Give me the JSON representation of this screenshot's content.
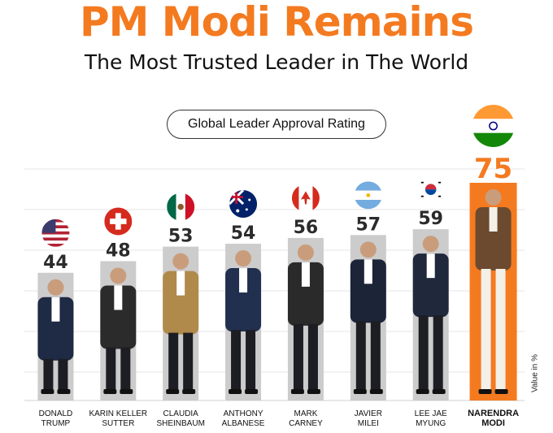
{
  "header": {
    "title": "PM Modi Remains",
    "subtitle": "The Most Trusted Leader in The World",
    "chart_label": "Global Leader Approval Rating",
    "unit_label": "Value in %"
  },
  "colors": {
    "accent": "#f47a20",
    "bar": "#cccccc",
    "highlight_bar": "#f47a20"
  },
  "chart_data": {
    "type": "bar",
    "title": "Global Leader Approval Rating",
    "ylabel": "Value in %",
    "categories": [
      [
        "DONALD",
        "TRUMP"
      ],
      [
        "KARIN KELLER",
        "SUTTER"
      ],
      [
        "CLAUDIA",
        "SHEINBAUM"
      ],
      [
        "ANTHONY",
        "ALBANESE"
      ],
      [
        "MARK",
        "CARNEY"
      ],
      [
        "JAVIER",
        "MILEI"
      ],
      [
        "LEE JAE",
        "MYUNG"
      ],
      [
        "NARENDRA",
        "MODI"
      ]
    ],
    "values": [
      44,
      48,
      53,
      54,
      56,
      57,
      59,
      75
    ],
    "flags": [
      "usa-flag-icon",
      "switzerland-flag-icon",
      "mexico-flag-icon",
      "australia-flag-icon",
      "canada-flag-icon",
      "argentina-flag-icon",
      "south-korea-flag-icon",
      "india-flag-icon"
    ],
    "highlight_index": 7,
    "grid": true
  }
}
